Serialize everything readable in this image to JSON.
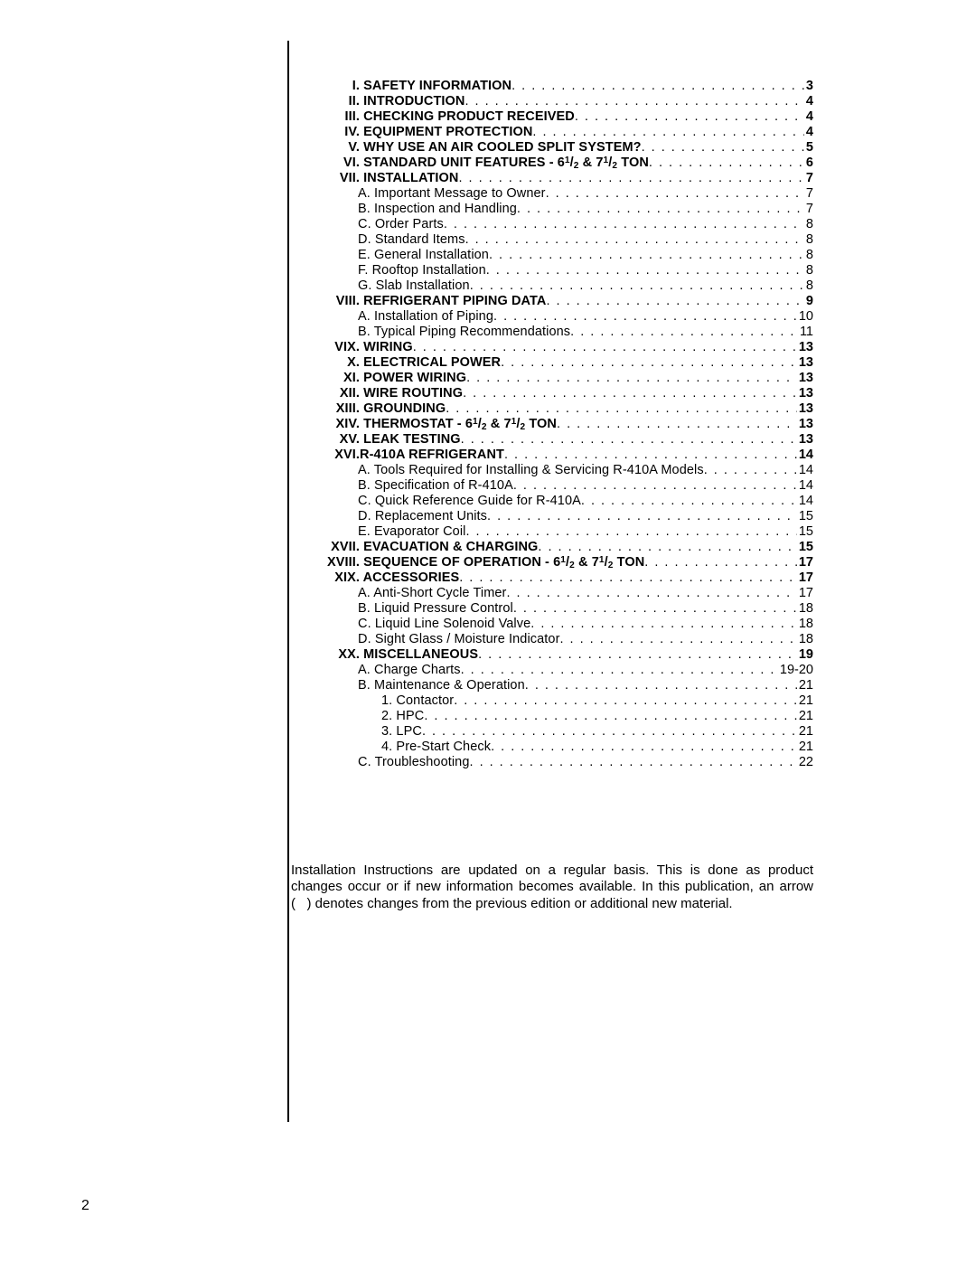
{
  "page_number": "2",
  "footnote": "Installation Instructions are updated on a regular basis. This is done as product changes occur or if new information becomes available. In this publication, an arrow (   ) denotes changes from the previous edition or additional new material.",
  "entries": [
    {
      "roman": "I.",
      "label": "SAFETY INFORMATION",
      "page": "3",
      "bold": true,
      "indent": 0
    },
    {
      "roman": "II.",
      "label": "INTRODUCTION",
      "page": "4",
      "bold": true,
      "indent": 0
    },
    {
      "roman": "III.",
      "label": "CHECKING PRODUCT RECEIVED",
      "page": "4",
      "bold": true,
      "indent": 0
    },
    {
      "roman": "IV.",
      "label": "EQUIPMENT PROTECTION",
      "page": "4",
      "bold": true,
      "indent": 0
    },
    {
      "roman": "V.",
      "label": "WHY USE AN AIR COOLED SPLIT SYSTEM?",
      "page": "5",
      "bold": true,
      "indent": 0
    },
    {
      "roman": "VI.",
      "label": "STANDARD UNIT FEATURES - 6½ & 7½ TON",
      "page": "6",
      "bold": true,
      "indent": 0,
      "fraction": true
    },
    {
      "roman": "VII.",
      "label": "INSTALLATION",
      "page": "7",
      "bold": true,
      "indent": 0
    },
    {
      "roman": "",
      "label": "A. Important Message to Owner",
      "page": "7",
      "bold": false,
      "indent": 1
    },
    {
      "roman": "",
      "label": "B. Inspection and Handling",
      "page": "7",
      "bold": false,
      "indent": 1
    },
    {
      "roman": "",
      "label": "C. Order Parts ",
      "page": "8",
      "bold": false,
      "indent": 1
    },
    {
      "roman": "",
      "label": "D. Standard Items",
      "page": "8",
      "bold": false,
      "indent": 1
    },
    {
      "roman": "",
      "label": "E. General Installation",
      "page": "8",
      "bold": false,
      "indent": 1
    },
    {
      "roman": "",
      "label": "F. Rooftop Installation",
      "page": "8",
      "bold": false,
      "indent": 1
    },
    {
      "roman": "",
      "label": "G. Slab Installation",
      "page": "8",
      "bold": false,
      "indent": 1
    },
    {
      "roman": "VIII.",
      "label": "REFRIGERANT PIPING DATA",
      "page": "9",
      "bold": true,
      "indent": 0
    },
    {
      "roman": "",
      "label": "A. Installation of Piping",
      "page": "10",
      "bold": false,
      "indent": 1
    },
    {
      "roman": "",
      "label": "B. Typical Piping Recommendations",
      "page": "11",
      "bold": false,
      "indent": 1
    },
    {
      "roman": "VIX.",
      "label": "WIRING",
      "page": "13",
      "bold": true,
      "indent": 0
    },
    {
      "roman": "X.",
      "label": "ELECTRICAL POWER",
      "page": "13",
      "bold": true,
      "indent": 0
    },
    {
      "roman": "XI.",
      "label": "POWER WIRING",
      "page": "13",
      "bold": true,
      "indent": 0
    },
    {
      "roman": "XII.",
      "label": "WIRE ROUTING",
      "page": "13",
      "bold": true,
      "indent": 0
    },
    {
      "roman": "XIII.",
      "label": "GROUNDING",
      "page": "13",
      "bold": true,
      "indent": 0
    },
    {
      "roman": "XIV.",
      "label": "THERMOSTAT - 6½ & 7½ TON",
      "page": "13",
      "bold": true,
      "indent": 0,
      "fraction": true
    },
    {
      "roman": "XV.",
      "label": "LEAK TESTING",
      "page": "13",
      "bold": true,
      "indent": 0
    },
    {
      "roman": "XVI.",
      "label": "R-410A REFRIGERANT",
      "page": "14",
      "bold": true,
      "indent": 0,
      "nospace": true
    },
    {
      "roman": "",
      "label": "A. Tools Required for Installing & Servicing R-410A Models",
      "page": "14",
      "bold": false,
      "indent": 1
    },
    {
      "roman": "",
      "label": "B. Specification of R-410A",
      "page": "14",
      "bold": false,
      "indent": 1
    },
    {
      "roman": "",
      "label": "C. Quick Reference Guide for R-410A",
      "page": "14",
      "bold": false,
      "indent": 1
    },
    {
      "roman": "",
      "label": "D. Replacement Units",
      "page": "15",
      "bold": false,
      "indent": 1
    },
    {
      "roman": "",
      "label": "E. Evaporator Coil",
      "page": "15",
      "bold": false,
      "indent": 1
    },
    {
      "roman": "XVII.",
      "label": "EVACUATION & CHARGING",
      "page": "15",
      "bold": true,
      "indent": 0
    },
    {
      "roman": "XVIII.",
      "label": "SEQUENCE OF OPERATION  - 6½ & 7½ TON",
      "page": "17",
      "bold": true,
      "indent": 0,
      "fraction": true
    },
    {
      "roman": "XIX.",
      "label": "ACCESSORIES",
      "page": "17",
      "bold": true,
      "indent": 0
    },
    {
      "roman": "",
      "label": "A. Anti-Short Cycle Timer",
      "page": "17",
      "bold": false,
      "indent": 1
    },
    {
      "roman": "",
      "label": "B. Liquid Pressure Control",
      "page": "18",
      "bold": false,
      "indent": 1
    },
    {
      "roman": "",
      "label": "C. Liquid Line Solenoid Valve",
      "page": "18",
      "bold": false,
      "indent": 1
    },
    {
      "roman": "",
      "label": "D. Sight Glass / Moisture Indicator",
      "page": "18",
      "bold": false,
      "indent": 1
    },
    {
      "roman": "XX.",
      "label": "MISCELLANEOUS",
      "page": "19",
      "bold": true,
      "indent": 0
    },
    {
      "roman": "",
      "label": "A. Charge Charts",
      "page": "19-20",
      "bold": false,
      "indent": 1
    },
    {
      "roman": "",
      "label": "B. Maintenance & Operation",
      "page": "21",
      "bold": false,
      "indent": 1
    },
    {
      "roman": "",
      "label": "1.  Contactor",
      "page": "21",
      "bold": false,
      "indent": 2
    },
    {
      "roman": "",
      "label": "2.  HPC",
      "page": "21",
      "bold": false,
      "indent": 2
    },
    {
      "roman": "",
      "label": "3.  LPC",
      "page": "21",
      "bold": false,
      "indent": 2
    },
    {
      "roman": "",
      "label": "4.  Pre-Start Check",
      "page": "21",
      "bold": false,
      "indent": 2
    },
    {
      "roman": "",
      "label": "C. Troubleshooting",
      "page": "22",
      "bold": false,
      "indent": 1
    }
  ]
}
